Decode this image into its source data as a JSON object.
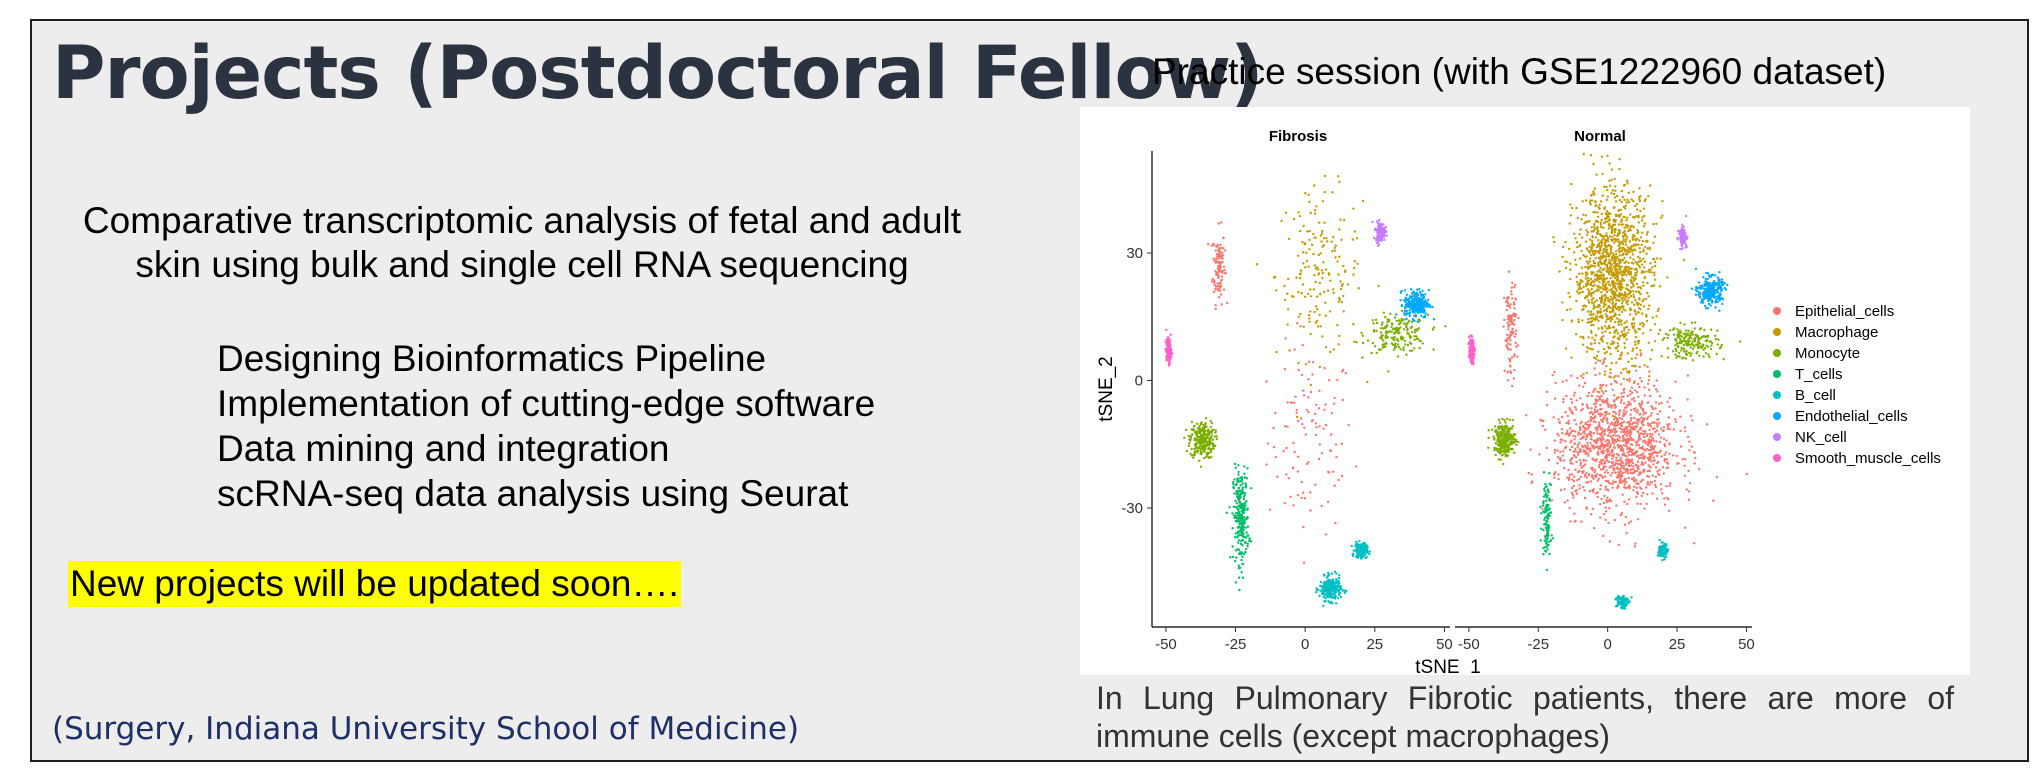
{
  "slide": {
    "title": "Projects (Postdoctoral Fellow)",
    "project_description": "Comparative transcriptomic analysis of fetal and adult skin using bulk and single cell RNA sequencing",
    "tasks": [
      "Designing Bioinformatics Pipeline",
      "Implementation of cutting-edge software",
      "Data mining and integration",
      "scRNA-seq data analysis using Seurat"
    ],
    "new_projects_note": "New projects will be updated soon….",
    "affiliation": "(Surgery, Indiana University School of Medicine)",
    "practice_title": "Practice session (with GSE1222960 dataset)",
    "caption": "In Lung Pulmonary Fibrotic patients, there are more of immune cells (except macrophages)"
  },
  "chart_data": {
    "type": "scatter",
    "panels": [
      {
        "title": "Fibrosis",
        "clusters": [
          {
            "cell_type": "Epithelial_cells",
            "center": [
              2,
              -14
            ],
            "spread": [
              14,
              20
            ],
            "density": "low"
          },
          {
            "cell_type": "Epithelial_cells",
            "center": [
              -31,
              27
            ],
            "spread": [
              2,
              8
            ],
            "density": "low"
          },
          {
            "cell_type": "Macrophage",
            "center": [
              5,
              25
            ],
            "spread": [
              14,
              18
            ],
            "density": "medium"
          },
          {
            "cell_type": "Monocyte",
            "center": [
              33,
              11
            ],
            "spread": [
              10,
              4
            ],
            "density": "medium"
          },
          {
            "cell_type": "Monocyte",
            "center": [
              -37,
              -14
            ],
            "spread": [
              4,
              4
            ],
            "density": "high"
          },
          {
            "cell_type": "T_cells",
            "center": [
              -23,
              -32
            ],
            "spread": [
              2.5,
              10
            ],
            "density": "high"
          },
          {
            "cell_type": "B_cell",
            "center": [
              9,
              -49
            ],
            "spread": [
              3.5,
              2.5
            ],
            "density": "high"
          },
          {
            "cell_type": "B_cell",
            "center": [
              20,
              -40
            ],
            "spread": [
              2,
              1.5
            ],
            "density": "medium"
          },
          {
            "cell_type": "Endothelial_cells",
            "center": [
              40,
              18
            ],
            "spread": [
              4,
              3
            ],
            "density": "high"
          },
          {
            "cell_type": "NK_cell",
            "center": [
              27,
              35
            ],
            "spread": [
              1.5,
              2
            ],
            "density": "medium"
          },
          {
            "cell_type": "Smooth_muscle_cells",
            "center": [
              -49,
              7
            ],
            "spread": [
              0.8,
              2.5
            ],
            "density": "medium"
          }
        ]
      },
      {
        "title": "Normal",
        "clusters": [
          {
            "cell_type": "Epithelial_cells",
            "center": [
              3,
              -15
            ],
            "spread": [
              20,
              14
            ],
            "density": "very-high"
          },
          {
            "cell_type": "Epithelial_cells",
            "center": [
              -35,
              12
            ],
            "spread": [
              2,
              10
            ],
            "density": "low"
          },
          {
            "cell_type": "Macrophage",
            "center": [
              2,
              25
            ],
            "spread": [
              13,
              18
            ],
            "density": "very-high"
          },
          {
            "cell_type": "Monocyte",
            "center": [
              30,
              9
            ],
            "spread": [
              9,
              3.5
            ],
            "density": "medium"
          },
          {
            "cell_type": "Monocyte",
            "center": [
              -37,
              -14
            ],
            "spread": [
              3.5,
              3.5
            ],
            "density": "high"
          },
          {
            "cell_type": "T_cells",
            "center": [
              -22,
              -32
            ],
            "spread": [
              1.5,
              8
            ],
            "density": "low"
          },
          {
            "cell_type": "B_cell",
            "center": [
              5,
              -52
            ],
            "spread": [
              2,
              1.5
            ],
            "density": "low"
          },
          {
            "cell_type": "B_cell",
            "center": [
              20,
              -40
            ],
            "spread": [
              1.5,
              1.5
            ],
            "density": "low"
          },
          {
            "cell_type": "Endothelial_cells",
            "center": [
              37,
              21
            ],
            "spread": [
              4,
              3
            ],
            "density": "high"
          },
          {
            "cell_type": "NK_cell",
            "center": [
              27,
              34
            ],
            "spread": [
              1.2,
              2
            ],
            "density": "low"
          },
          {
            "cell_type": "Smooth_muscle_cells",
            "center": [
              -49,
              7
            ],
            "spread": [
              0.8,
              2.5
            ],
            "density": "medium"
          }
        ]
      }
    ],
    "xlabel": "tSNE_1",
    "ylabel": "tSNE_2",
    "xticks": [
      -50,
      -25,
      0,
      25,
      50
    ],
    "yticks": [
      -30,
      0,
      30
    ],
    "xlim": [
      -55,
      52
    ],
    "ylim": [
      -58,
      54
    ],
    "legend_position": "right",
    "grid": false,
    "legend": [
      {
        "name": "Epithelial_cells",
        "color": "#F8766D"
      },
      {
        "name": "Macrophage",
        "color": "#C49A00"
      },
      {
        "name": "Monocyte",
        "color": "#7CAE00"
      },
      {
        "name": "T_cells",
        "color": "#00BE67"
      },
      {
        "name": "B_cell",
        "color": "#00BFC4"
      },
      {
        "name": "Endothelial_cells",
        "color": "#00A9FF"
      },
      {
        "name": "NK_cell",
        "color": "#C77CFF"
      },
      {
        "name": "Smooth_muscle_cells",
        "color": "#FF61CC"
      }
    ]
  }
}
